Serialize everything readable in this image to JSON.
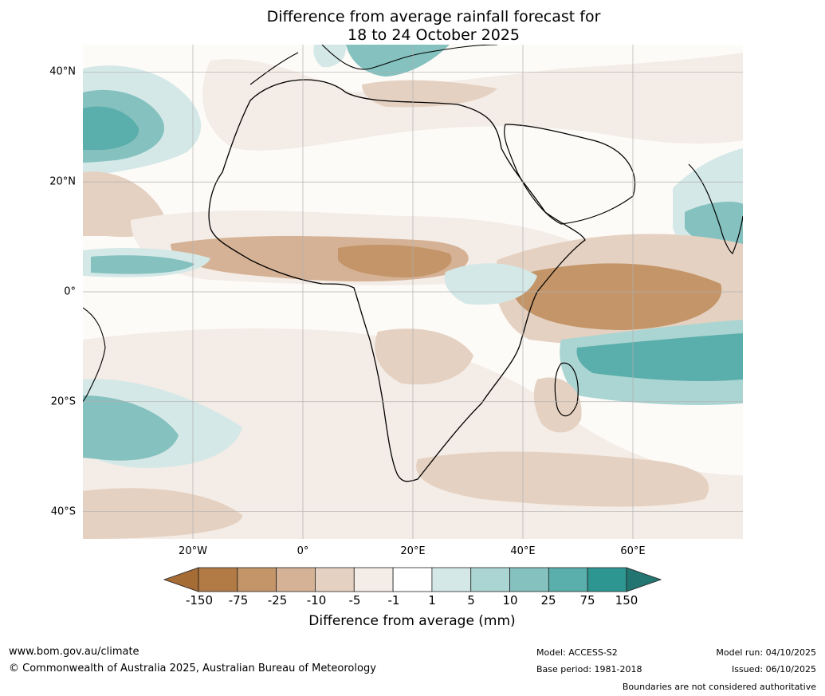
{
  "title": {
    "line1": "Difference from average rainfall forecast for",
    "line2": "18 to 24 October 2025"
  },
  "map": {
    "region": "Africa",
    "lat_labels": [
      "40°N",
      "20°N",
      "0°",
      "20°S",
      "40°S"
    ],
    "lon_labels": [
      "20°W",
      "0°",
      "20°E",
      "40°E",
      "60°E"
    ],
    "lat_values": [
      40,
      20,
      0,
      -20,
      -40
    ],
    "lon_values": [
      -20,
      0,
      20,
      40,
      60
    ],
    "extent": {
      "lon_min": -40,
      "lon_max": 80,
      "lat_min": -45,
      "lat_max": 45
    }
  },
  "colorbar": {
    "title": "Difference from average (mm)",
    "tick_labels": [
      "-150",
      "-75",
      "-25",
      "-10",
      "-5",
      "-1",
      "1",
      "5",
      "10",
      "25",
      "75",
      "150"
    ],
    "colors": [
      "#a66c36",
      "#b27a45",
      "#c39568",
      "#d5b295",
      "#e5d1c1",
      "#f4ece6",
      "#ffffff",
      "#d4e8e7",
      "#abd5d3",
      "#84c1bf",
      "#5aaeab",
      "#2d9691",
      "#237572"
    ]
  },
  "footer": {
    "website": "www.bom.gov.au/climate",
    "copyright": "© Commonwealth of Australia 2025, Australian Bureau of Meteorology",
    "model": "Model: ACCESS-S2",
    "base_period": "Base period: 1981-2018",
    "model_run": "Model run: 04/10/2025",
    "issued": "Issued: 06/10/2025",
    "disclaimer": "Boundaries are not considered authoritative"
  }
}
